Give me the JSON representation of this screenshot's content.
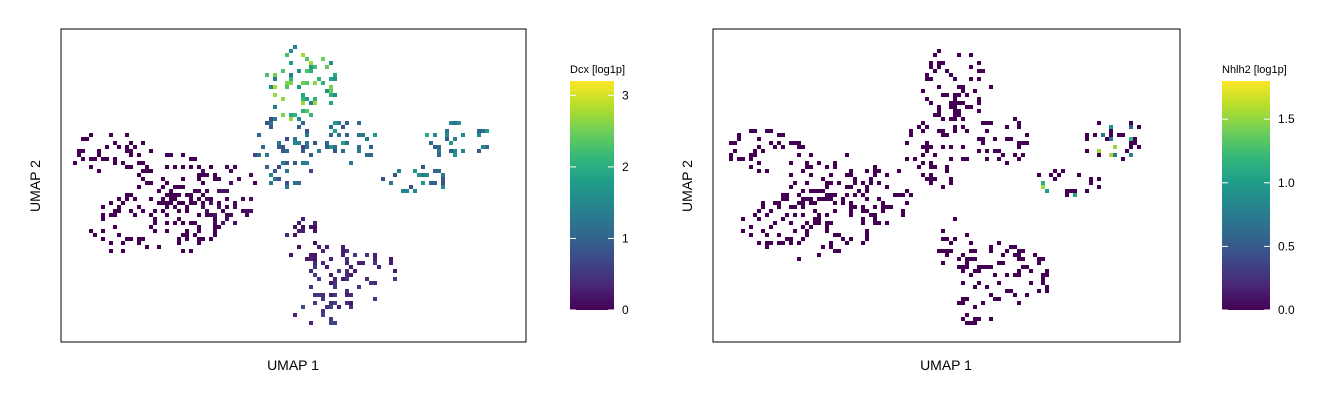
{
  "chart_data": [
    {
      "type": "scatter",
      "plot": "umap-embedding",
      "title": "",
      "xlabel": "UMAP 1",
      "ylabel": "UMAP 2",
      "colorbar": {
        "label": "Dcx [log1p]",
        "colormap": "viridis",
        "range": [
          0,
          3.2
        ],
        "ticks": [
          0,
          1,
          2,
          3
        ],
        "tick_labels": [
          "0",
          "1",
          "2",
          "3"
        ]
      },
      "point_size": "tiny",
      "description_of_values": "expression highest in upper lobe and right arm"
    },
    {
      "type": "scatter",
      "plot": "umap-embedding",
      "title": "",
      "xlabel": "UMAP 1",
      "ylabel": "UMAP 2",
      "colorbar": {
        "label": "Nhlh2 [log1p]",
        "colormap": "viridis",
        "range": [
          0,
          1.8
        ],
        "ticks": [
          0,
          0.5,
          1.0,
          1.5
        ],
        "tick_labels": [
          "0.0",
          "0.5",
          "1.0",
          "1.5"
        ]
      },
      "point_size": "tiny",
      "description_of_values": "expression near zero except sparse cells on right arm"
    }
  ],
  "colors": {
    "viridis_stops": [
      "#440154",
      "#482878",
      "#3e4989",
      "#31688e",
      "#26828e",
      "#1f9e89",
      "#35b779",
      "#6ece58",
      "#b5de2b",
      "#fde725"
    ],
    "frame": "#000000",
    "background": "#ffffff"
  }
}
